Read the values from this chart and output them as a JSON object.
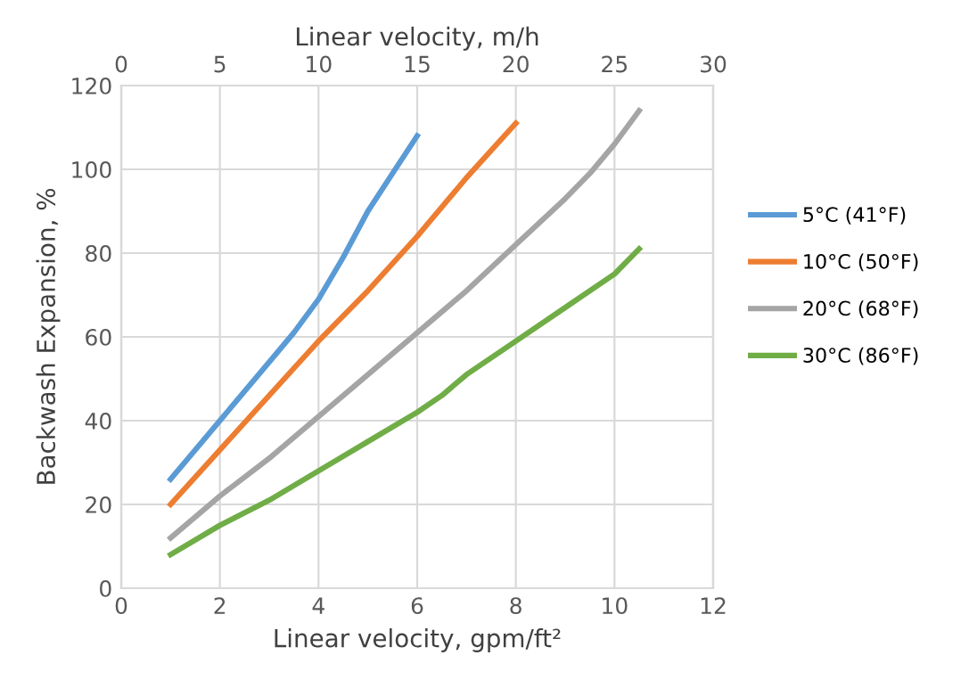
{
  "chart_data": {
    "type": "line",
    "xlabel": "Linear velocity, gpm/ft²",
    "ylabel": "Backwash Expansion, %",
    "x2label": "Linear velocity, m/h",
    "xlim": [
      0,
      12
    ],
    "xticks": [
      0,
      2,
      4,
      6,
      8,
      10,
      12
    ],
    "x2lim": [
      0,
      30
    ],
    "x2ticks": [
      0,
      5,
      10,
      15,
      20,
      25,
      30
    ],
    "ylim": [
      0,
      120
    ],
    "yticks": [
      0,
      20,
      40,
      60,
      80,
      100,
      120
    ],
    "grid": true,
    "legend": "right",
    "marker": "none",
    "line_style": "solid",
    "series": [
      {
        "name": "5°C (41°F)",
        "color": "#5b9bd5",
        "x": [
          1,
          2,
          3,
          3.5,
          4,
          4.5,
          5,
          5.5,
          6
        ],
        "values": [
          26,
          40,
          54,
          61,
          69,
          79,
          90,
          99,
          108
        ]
      },
      {
        "name": "10°C (50°F)",
        "color": "#ed7d31",
        "x": [
          1,
          2,
          3,
          4,
          5,
          6,
          7,
          8
        ],
        "values": [
          20,
          33,
          46,
          59,
          71,
          84,
          98,
          111
        ]
      },
      {
        "name": "20°C (68°F)",
        "color": "#a5a5a5",
        "x": [
          1,
          2,
          3,
          4,
          5,
          6,
          7,
          8,
          9,
          9.5,
          10,
          10.5
        ],
        "values": [
          12,
          22,
          31,
          41,
          51,
          61,
          71,
          82,
          93,
          99,
          106,
          114
        ]
      },
      {
        "name": "30°C (86°F)",
        "color": "#70ad47",
        "x": [
          1,
          2,
          3,
          4,
          5,
          6,
          6.5,
          7,
          8,
          9,
          10,
          10.5
        ],
        "values": [
          8,
          15,
          21,
          28,
          35,
          42,
          46,
          51,
          59,
          67,
          75,
          81
        ]
      }
    ]
  }
}
